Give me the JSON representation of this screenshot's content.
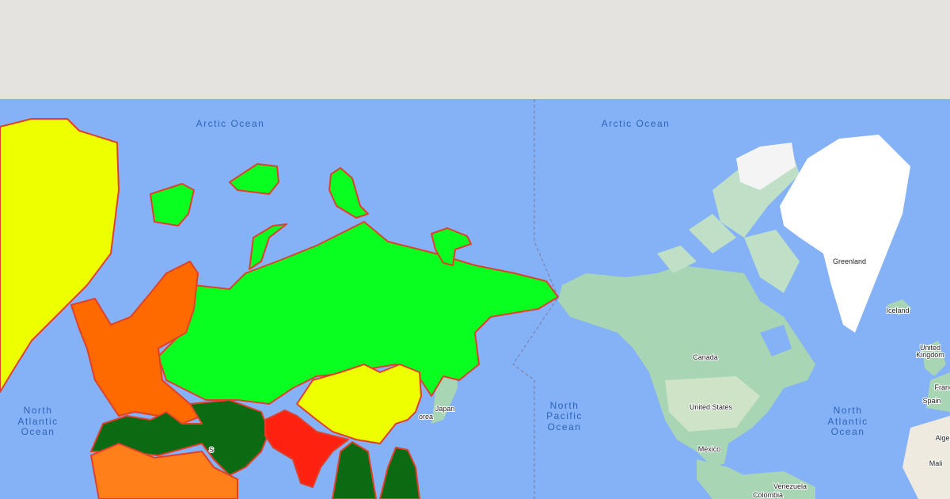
{
  "map": {
    "ocean_labels": {
      "arctic_left": "Arctic Ocean",
      "arctic_right": "Arctic Ocean",
      "atlantic_left": [
        "North",
        "Atlantic",
        "Ocean"
      ],
      "pacific": [
        "North",
        "Pacific",
        "Ocean"
      ],
      "atlantic_right": [
        "North",
        "Atlantic",
        "Ocean"
      ]
    },
    "country_labels": {
      "greenland": "Greenland",
      "iceland": "Iceland",
      "uk": [
        "United",
        "Kingdom"
      ],
      "france": "Franc",
      "spain": "Spain",
      "algeria": "Alger",
      "mali": "Mali",
      "canada": "Canada",
      "usa": "United States",
      "mexico": "Mexico",
      "venezuela": "Venezuela",
      "colombia": "Colombia",
      "japan": "Japan",
      "korea": "orea",
      "partial_s": "S"
    },
    "region_colors": {
      "yellow": "#eeff00",
      "bright_green": "#08ff1f",
      "orange": "#ff6a00",
      "light_orange": "#ff7f1a",
      "dark_green": "#0b6b12",
      "red": "#ff2210",
      "border": "#e0402a",
      "ocean": "#85b2f7",
      "land": "#a8d5b4"
    }
  }
}
